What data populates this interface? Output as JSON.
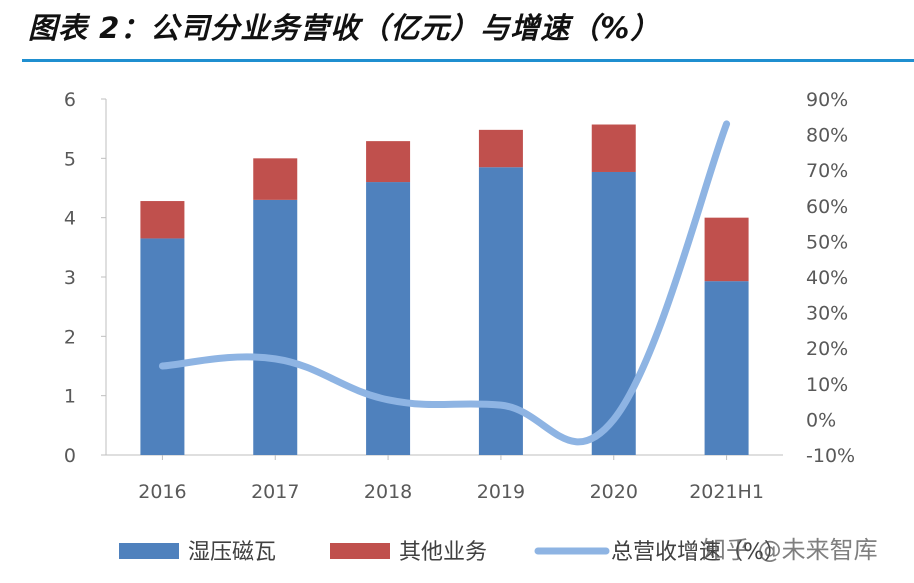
{
  "title": "图表 2：公司分业务营收（亿元）与增速（%）",
  "watermark": "知乎 @未来智库",
  "colors": {
    "bar1": "#4f81bd",
    "bar2": "#c0504d",
    "line": "#8eb4e3",
    "axis": "#bfbfbf",
    "tick_text": "#595959",
    "title_rule": "#1f8fd0"
  },
  "chart_data": {
    "type": "bar",
    "stacked": true,
    "categories": [
      "2016",
      "2017",
      "2018",
      "2019",
      "2020",
      "2021H1"
    ],
    "series": [
      {
        "name": "湿压磁瓦",
        "type": "bar",
        "axis": "left",
        "values": [
          3.65,
          4.3,
          4.6,
          4.85,
          4.77,
          2.93
        ]
      },
      {
        "name": "其他业务",
        "type": "bar",
        "axis": "left",
        "values": [
          0.63,
          0.7,
          0.69,
          0.63,
          0.8,
          1.07
        ]
      },
      {
        "name": "总营收增速（%）",
        "type": "line",
        "axis": "right",
        "smooth": true,
        "values": [
          15,
          17,
          5.5,
          4,
          0,
          83
        ]
      }
    ],
    "left_axis": {
      "min": 0,
      "max": 6,
      "ticks": [
        "0",
        "1",
        "2",
        "3",
        "4",
        "5",
        "6"
      ]
    },
    "right_axis": {
      "min": -10,
      "max": 90,
      "ticks": [
        "-10%",
        "0%",
        "10%",
        "20%",
        "30%",
        "40%",
        "50%",
        "60%",
        "70%",
        "80%",
        "90%"
      ]
    },
    "legend_position": "bottom"
  }
}
